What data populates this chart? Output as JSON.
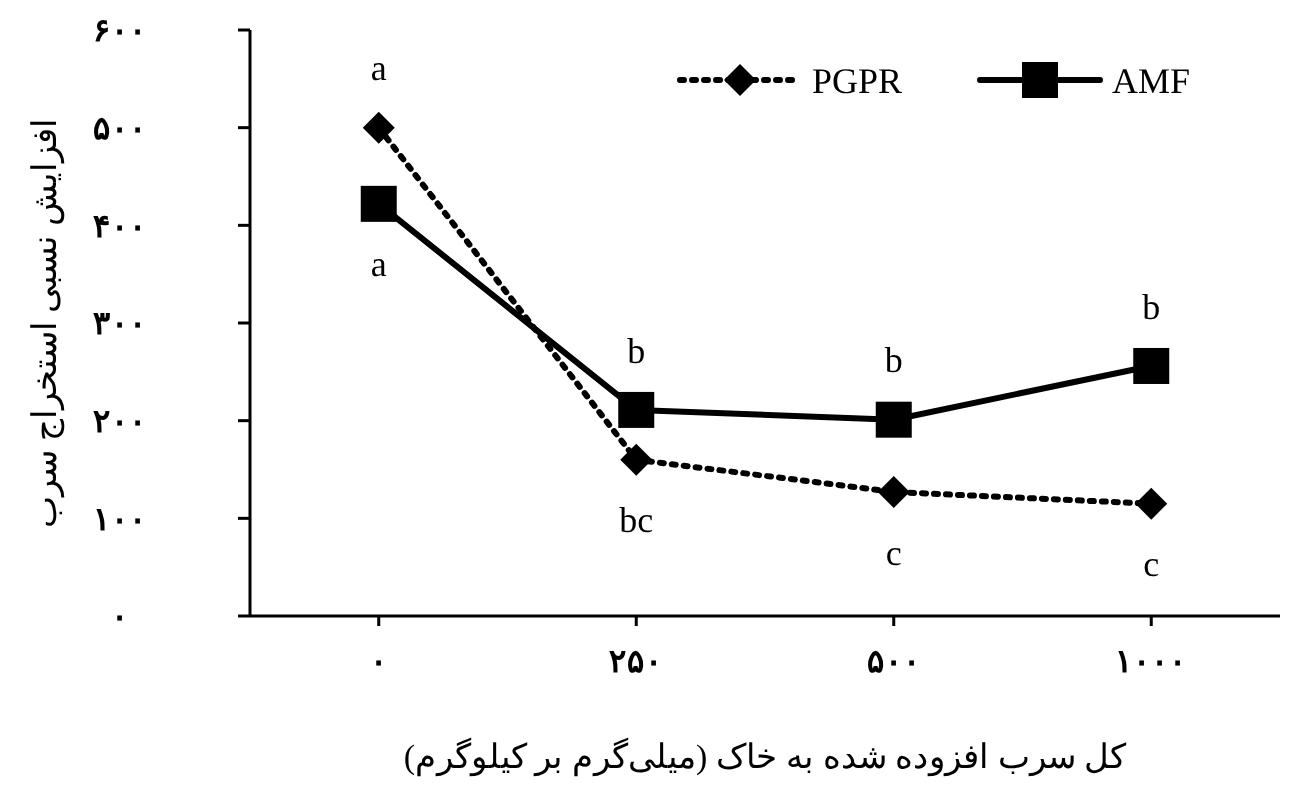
{
  "chart_data": {
    "type": "line",
    "xlabel": "کل سرب افزوده شده به خاک (میلی‌گرم بر کیلوگرم)",
    "ylabel": "افزایش نسبی استخراج سرب",
    "categories": [
      "۰",
      "۲۵۰",
      "۵۰۰",
      "۱۰۰۰"
    ],
    "ylim": [
      0,
      600
    ],
    "yticks": [
      {
        "value": 0,
        "label": "۰"
      },
      {
        "value": 100,
        "label": "۱۰۰"
      },
      {
        "value": 200,
        "label": "۲۰۰"
      },
      {
        "value": 300,
        "label": "۳۰۰"
      },
      {
        "value": 400,
        "label": "۴۰۰"
      },
      {
        "value": 500,
        "label": "۵۰۰"
      },
      {
        "value": 600,
        "label": "۶۰۰"
      }
    ],
    "series": [
      {
        "name": "PGPR",
        "color": "#000000",
        "values": [
          500,
          160,
          127,
          115
        ],
        "line_style": "dotted",
        "marker": "diamond"
      },
      {
        "name": "AMF",
        "color": "#000000",
        "values": [
          422,
          211,
          201,
          256
        ],
        "line_style": "solid",
        "marker": "square"
      }
    ],
    "annotations": [
      {
        "text": "a",
        "x": "۰",
        "y": 500
      },
      {
        "text": "a",
        "x": "۰",
        "y": 422
      },
      {
        "text": "b",
        "x": "۲۵۰",
        "y": 211
      },
      {
        "text": "bc",
        "x": "۲۵۰",
        "y": 160
      },
      {
        "text": "b",
        "x": "۵۰۰",
        "y": 201
      },
      {
        "text": "c",
        "x": "۵۰۰",
        "y": 127
      },
      {
        "text": "b",
        "x": "۱۰۰۰",
        "y": 256
      },
      {
        "text": "c",
        "x": "۱۰۰۰",
        "y": 115
      }
    ],
    "grid": false,
    "legend": "top right"
  }
}
